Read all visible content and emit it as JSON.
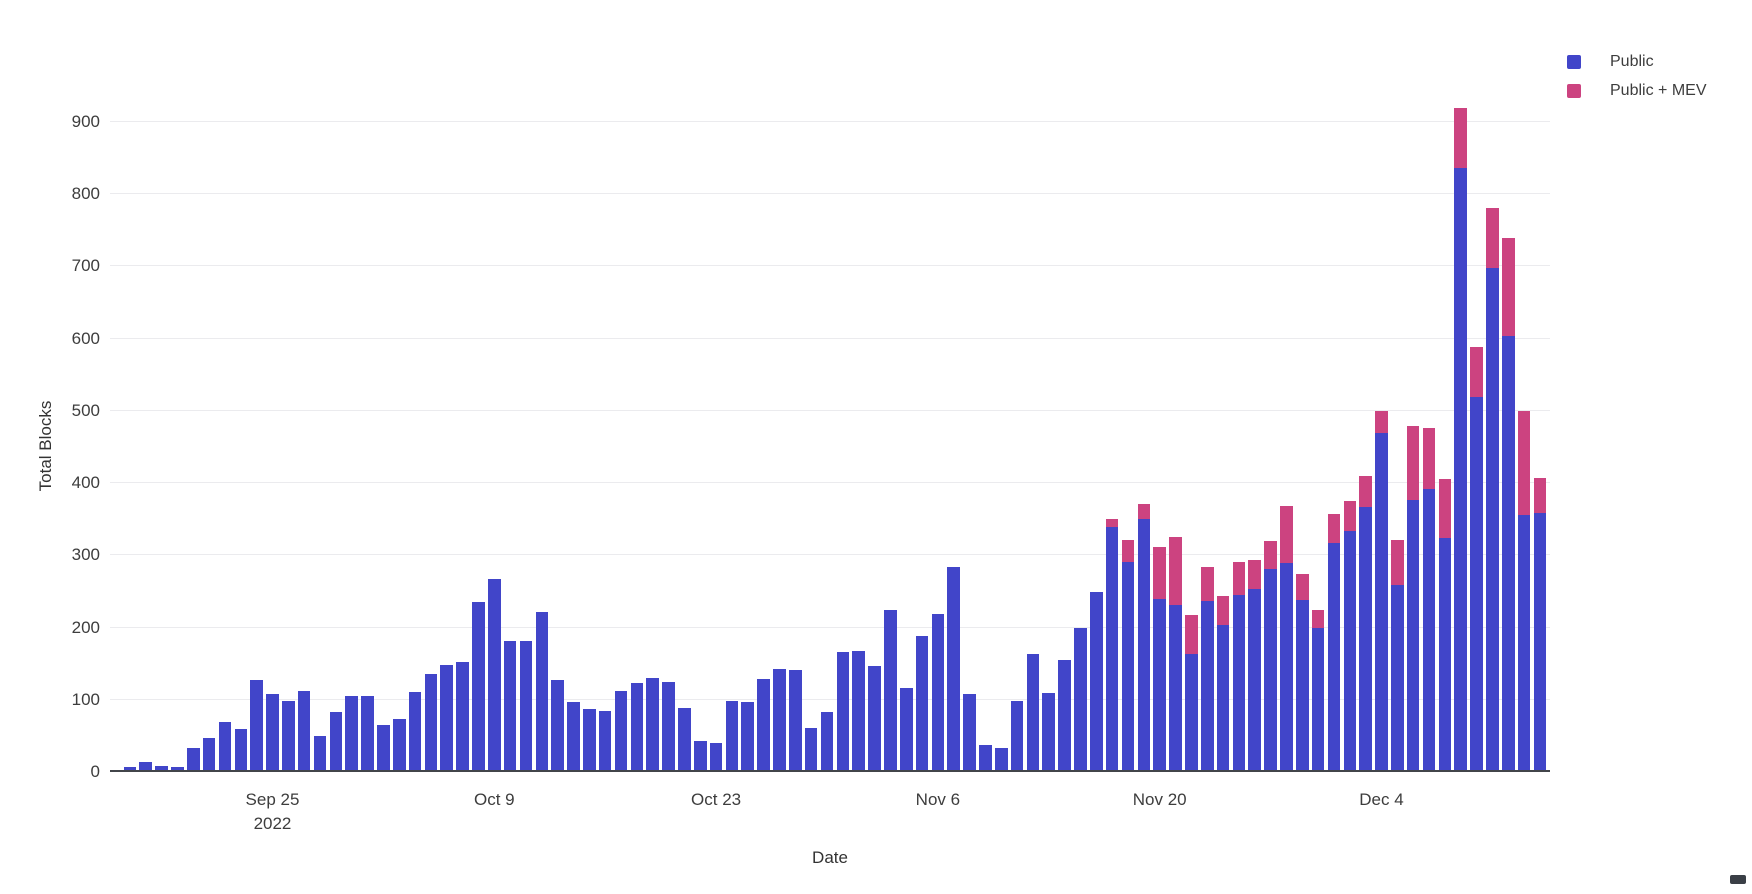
{
  "chart_data": {
    "type": "bar",
    "stacked": true,
    "title": "",
    "xlabel": "Date",
    "ylabel": "Total Blocks",
    "ylim": [
      0,
      957
    ],
    "grid": true,
    "legend_position": "top-right",
    "yticks": [
      0,
      100,
      200,
      300,
      400,
      500,
      600,
      700,
      800,
      900
    ],
    "x_tick_labels": [
      {
        "label": "Sep 25",
        "sublabel": "2022",
        "index": 9
      },
      {
        "label": "Oct 9",
        "sublabel": "",
        "index": 23
      },
      {
        "label": "Oct 23",
        "sublabel": "",
        "index": 37
      },
      {
        "label": "Nov 6",
        "sublabel": "",
        "index": 51
      },
      {
        "label": "Nov 20",
        "sublabel": "",
        "index": 65
      },
      {
        "label": "Dec 4",
        "sublabel": "",
        "index": 79
      }
    ],
    "categories": [
      "Sep 16",
      "Sep 17",
      "Sep 18",
      "Sep 19",
      "Sep 20",
      "Sep 21",
      "Sep 22",
      "Sep 23",
      "Sep 24",
      "Sep 25",
      "Sep 26",
      "Sep 27",
      "Sep 28",
      "Sep 29",
      "Sep 30",
      "Oct 1",
      "Oct 2",
      "Oct 3",
      "Oct 4",
      "Oct 5",
      "Oct 6",
      "Oct 7",
      "Oct 8",
      "Oct 9",
      "Oct 10",
      "Oct 11",
      "Oct 12",
      "Oct 13",
      "Oct 14",
      "Oct 15",
      "Oct 16",
      "Oct 17",
      "Oct 18",
      "Oct 19",
      "Oct 20",
      "Oct 21",
      "Oct 22",
      "Oct 23",
      "Oct 24",
      "Oct 25",
      "Oct 26",
      "Oct 27",
      "Oct 28",
      "Oct 29",
      "Oct 30",
      "Oct 31",
      "Nov 1",
      "Nov 2",
      "Nov 3",
      "Nov 4",
      "Nov 5",
      "Nov 6",
      "Nov 7",
      "Nov 8",
      "Nov 9",
      "Nov 10",
      "Nov 11",
      "Nov 12",
      "Nov 13",
      "Nov 14",
      "Nov 15",
      "Nov 16",
      "Nov 17",
      "Nov 18",
      "Nov 19",
      "Nov 20",
      "Nov 21",
      "Nov 22",
      "Nov 23",
      "Nov 24",
      "Nov 25",
      "Nov 26",
      "Nov 27",
      "Nov 28",
      "Nov 29",
      "Nov 30",
      "Dec 1",
      "Dec 2",
      "Dec 3",
      "Dec 4",
      "Dec 5",
      "Dec 6",
      "Dec 7",
      "Dec 8",
      "Dec 9",
      "Dec 10",
      "Dec 11",
      "Dec 12",
      "Dec 13",
      "Dec 14"
    ],
    "series": [
      {
        "name": "Public",
        "color": "#4145C9",
        "values": [
          4,
          11,
          5,
          4,
          30,
          44,
          67,
          57,
          125,
          105,
          95,
          109,
          47,
          81,
          103,
          103,
          62,
          70,
          108,
          133,
          145,
          150,
          233,
          265,
          178,
          178,
          219,
          125,
          94,
          85,
          82,
          109,
          120,
          128,
          122,
          86,
          40,
          38,
          96,
          94,
          126,
          140,
          139,
          58,
          81,
          164,
          165,
          144,
          222,
          114,
          185,
          216,
          281,
          105,
          35,
          31,
          96,
          161,
          107,
          152,
          196,
          246,
          337,
          288,
          348,
          237,
          229,
          160,
          234,
          201,
          243,
          250,
          279,
          287,
          236,
          197,
          315,
          331,
          364,
          466,
          256,
          374,
          389,
          321,
          834,
          516,
          695,
          601,
          353,
          356
        ]
      },
      {
        "name": "Public + MEV",
        "color": "#CC4380",
        "values": [
          0,
          0,
          0,
          0,
          0,
          0,
          0,
          0,
          0,
          0,
          0,
          0,
          0,
          0,
          0,
          0,
          0,
          0,
          0,
          0,
          0,
          0,
          0,
          0,
          0,
          0,
          0,
          0,
          0,
          0,
          0,
          0,
          0,
          0,
          0,
          0,
          0,
          0,
          0,
          0,
          0,
          0,
          0,
          0,
          0,
          0,
          0,
          0,
          0,
          0,
          0,
          0,
          0,
          0,
          0,
          0,
          0,
          0,
          0,
          0,
          0,
          0,
          10,
          30,
          20,
          72,
          93,
          55,
          47,
          40,
          45,
          41,
          38,
          78,
          36,
          25,
          39,
          42,
          43,
          31,
          62,
          102,
          84,
          82,
          83,
          70,
          83,
          135,
          144,
          49
        ]
      }
    ]
  },
  "legend": {
    "items": [
      {
        "label": "Public",
        "color": "#4145C9"
      },
      {
        "label": "Public + MEV",
        "color": "#CC4380"
      }
    ]
  },
  "colors": {
    "background": "#ffffff",
    "gridline": "#ebebee",
    "axis_line": "#42454a",
    "tick_text": "#3d3d3d"
  }
}
